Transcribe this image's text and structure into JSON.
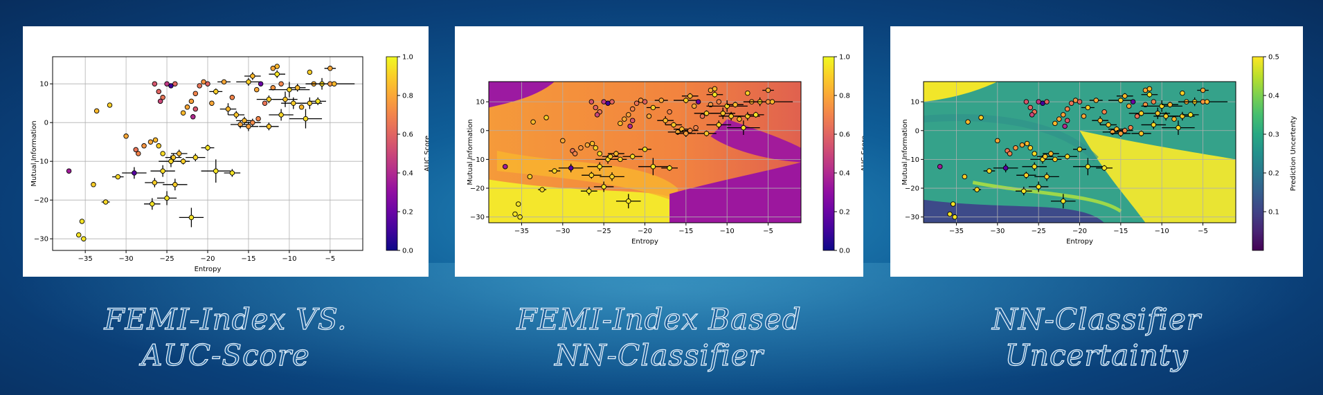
{
  "panels": [
    {
      "caption_line1": "FEMI-Index VS.",
      "caption_line2": "AUC-Score",
      "chart": {
        "type": "scatter",
        "xlabel": "Entropy",
        "ylabel": "Mutual Information",
        "colorbar_label": "AUC Score",
        "colormap": "plasma",
        "xlim": [
          -39,
          -1
        ],
        "ylim": [
          -33,
          17
        ],
        "xticks": [
          -35,
          -30,
          -25,
          -20,
          -15,
          -10,
          -5
        ],
        "yticks": [
          -30,
          -20,
          -10,
          0,
          10
        ],
        "cbar_range": [
          0,
          1
        ],
        "cbar_ticks": [
          "0.0",
          "0.2",
          "0.4",
          "0.6",
          "0.8",
          "1.0"
        ],
        "background": "none"
      }
    },
    {
      "caption_line1": "FEMI-Index Based",
      "caption_line2": "NN-Classifier",
      "chart": {
        "type": "scatter",
        "xlabel": "Entropy",
        "ylabel": "Mutual Information",
        "colorbar_label": "AUC Score",
        "colormap": "plasma",
        "xlim": [
          -39,
          -1
        ],
        "ylim": [
          -32,
          17
        ],
        "xticks": [
          -35,
          -30,
          -25,
          -20,
          -15,
          -10,
          -5
        ],
        "yticks": [
          -30,
          -20,
          -10,
          0,
          10
        ],
        "cbar_range": [
          0,
          1
        ],
        "cbar_ticks": [
          "0.0",
          "0.2",
          "0.4",
          "0.6",
          "0.8",
          "1.0"
        ],
        "background": "classifier"
      }
    },
    {
      "caption_line1": "NN-Classifier",
      "caption_line2": "Uncertainty",
      "chart": {
        "type": "scatter",
        "xlabel": "Entropy",
        "ylabel": "Mutual Information",
        "colorbar_label": "Prediction Uncertenty",
        "colormap": "viridis",
        "xlim": [
          -39,
          -1
        ],
        "ylim": [
          -32,
          17
        ],
        "xticks": [
          -35,
          -30,
          -25,
          -20,
          -15,
          -10,
          -5
        ],
        "yticks": [
          -30,
          -20,
          -10,
          0,
          10
        ],
        "cbar_range": [
          0,
          0.5
        ],
        "cbar_ticks": [
          "0.1",
          "0.2",
          "0.3",
          "0.4",
          "0.5"
        ],
        "background": "uncertainty"
      }
    }
  ],
  "chart_data": {
    "type": "scatter",
    "x_name": "Entropy",
    "y_name": "Mutual Information",
    "points": [
      {
        "x": -37.0,
        "y": -12.5,
        "auc": 0.35
      },
      {
        "x": -35.8,
        "y": -29.0,
        "auc": 0.95
      },
      {
        "x": -35.4,
        "y": -25.5,
        "auc": 0.95
      },
      {
        "x": -35.2,
        "y": -30.0,
        "auc": 0.95
      },
      {
        "x": -34.0,
        "y": -16.0,
        "auc": 0.9
      },
      {
        "x": -33.6,
        "y": 3.0,
        "auc": 0.85
      },
      {
        "x": -32.5,
        "y": -20.5,
        "auc": 0.92,
        "xe": 0.5,
        "ye": 0.5
      },
      {
        "x": -32.0,
        "y": 4.5,
        "auc": 0.9
      },
      {
        "x": -31.0,
        "y": -14.0,
        "auc": 0.92,
        "xe": 0.7
      },
      {
        "x": -30.0,
        "y": -3.5,
        "auc": 0.8
      },
      {
        "x": -29.0,
        "y": -13.0,
        "auc": 0.15,
        "xe": 1.5,
        "ye": 1.5
      },
      {
        "x": -28.8,
        "y": -7.0,
        "auc": 0.65
      },
      {
        "x": -28.5,
        "y": -8.0,
        "auc": 0.7
      },
      {
        "x": -27.8,
        "y": -6.0,
        "auc": 0.75
      },
      {
        "x": -27.0,
        "y": -5.0,
        "auc": 0.8
      },
      {
        "x": -26.4,
        "y": -4.5,
        "auc": 0.85
      },
      {
        "x": -26.0,
        "y": -6.0,
        "auc": 0.9
      },
      {
        "x": -25.5,
        "y": -8.0,
        "auc": 0.93
      },
      {
        "x": -26.5,
        "y": 10.0,
        "auc": 0.55
      },
      {
        "x": -26.0,
        "y": 8.0,
        "auc": 0.6
      },
      {
        "x": -25.5,
        "y": 6.5,
        "auc": 0.65
      },
      {
        "x": -25.0,
        "y": 10.0,
        "auc": 0.45
      },
      {
        "x": -24.5,
        "y": 9.5,
        "auc": 0.1
      },
      {
        "x": -24.0,
        "y": 10.0,
        "auc": 0.6
      },
      {
        "x": -25.8,
        "y": 5.5,
        "auc": 0.5
      },
      {
        "x": -26.8,
        "y": -21.0,
        "auc": 0.95,
        "xe": 1.0,
        "ye": 1.5
      },
      {
        "x": -26.5,
        "y": -15.5,
        "auc": 0.9,
        "xe": 1.2,
        "ye": 1.2
      },
      {
        "x": -25.5,
        "y": -12.5,
        "auc": 0.93,
        "xe": 1.5,
        "ye": 1.5
      },
      {
        "x": -25.0,
        "y": -19.5,
        "auc": 0.95,
        "xe": 1.2,
        "ye": 1.8
      },
      {
        "x": -24.5,
        "y": -10.0,
        "auc": 0.92,
        "xe": 1.5,
        "ye": 1.5
      },
      {
        "x": -24.0,
        "y": -16.0,
        "auc": 0.9,
        "xe": 1.5,
        "ye": 1.5
      },
      {
        "x": -24.2,
        "y": -9.0,
        "auc": 0.88,
        "xe": 1.0,
        "ye": 1.0
      },
      {
        "x": -23.5,
        "y": -8.0,
        "auc": 0.85,
        "xe": 1.0,
        "ye": 1.0
      },
      {
        "x": -23.0,
        "y": -10.0,
        "auc": 0.9,
        "xe": 0.8,
        "ye": 0.8
      },
      {
        "x": -23.0,
        "y": 2.5,
        "auc": 0.85
      },
      {
        "x": -22.5,
        "y": 4.0,
        "auc": 0.8
      },
      {
        "x": -22.0,
        "y": 5.5,
        "auc": 0.78
      },
      {
        "x": -21.5,
        "y": 7.5,
        "auc": 0.7
      },
      {
        "x": -21.5,
        "y": -9.0,
        "auc": 0.92,
        "xe": 1.2,
        "ye": 1.0
      },
      {
        "x": -22.0,
        "y": -24.5,
        "auc": 0.95,
        "xe": 1.5,
        "ye": 2.5
      },
      {
        "x": -21.0,
        "y": 9.5,
        "auc": 0.65
      },
      {
        "x": -20.5,
        "y": 10.5,
        "auc": 0.75
      },
      {
        "x": -20.0,
        "y": 10.0,
        "auc": 0.6
      },
      {
        "x": -21.5,
        "y": 3.5,
        "auc": 0.55
      },
      {
        "x": -21.8,
        "y": 1.5,
        "auc": 0.4
      },
      {
        "x": -20.0,
        "y": -6.5,
        "auc": 0.95,
        "xe": 0.8,
        "ye": 0.8
      },
      {
        "x": -19.5,
        "y": 5.0,
        "auc": 0.8
      },
      {
        "x": -19.0,
        "y": 8.0,
        "auc": 0.9,
        "xe": 0.8,
        "ye": 0.8
      },
      {
        "x": -19.0,
        "y": -12.5,
        "auc": 0.95,
        "xe": 1.8,
        "ye": 3.0
      },
      {
        "x": -18.0,
        "y": 10.5,
        "auc": 0.8,
        "xe": 0.8
      },
      {
        "x": -17.5,
        "y": 3.5,
        "auc": 0.85,
        "xe": 1.0,
        "ye": 1.5
      },
      {
        "x": -17.0,
        "y": -13.0,
        "auc": 0.95,
        "xe": 1.0,
        "ye": 1.0
      },
      {
        "x": -17.0,
        "y": 6.5,
        "auc": 0.7
      },
      {
        "x": -16.5,
        "y": 2.0,
        "auc": 0.88,
        "xe": 1.0,
        "ye": 1.0
      },
      {
        "x": -16.0,
        "y": -0.5,
        "auc": 0.8,
        "xe": 1.2,
        "ye": 1.0
      },
      {
        "x": -15.5,
        "y": 0.5,
        "auc": 0.85,
        "xe": 1.0,
        "ye": 1.0
      },
      {
        "x": -15.0,
        "y": -1.0,
        "auc": 0.78,
        "xe": 1.2,
        "ye": 1.2
      },
      {
        "x": -15.0,
        "y": 10.5,
        "auc": 0.9,
        "xe": 1.5,
        "ye": 1.0
      },
      {
        "x": -14.5,
        "y": 0.0,
        "auc": 0.72,
        "xe": 1.0,
        "ye": 1.0
      },
      {
        "x": -14.5,
        "y": 12.0,
        "auc": 0.85,
        "xe": 1.0,
        "ye": 1.0
      },
      {
        "x": -14.0,
        "y": 8.5,
        "auc": 0.8
      },
      {
        "x": -13.8,
        "y": 1.0,
        "auc": 0.7
      },
      {
        "x": -13.5,
        "y": 10.0,
        "auc": 0.2
      },
      {
        "x": -13.0,
        "y": 5.0,
        "auc": 0.65
      },
      {
        "x": -12.5,
        "y": 6.0,
        "auc": 0.9,
        "xe": 1.5,
        "ye": 1.0
      },
      {
        "x": -12.0,
        "y": 9.0,
        "auc": 0.75
      },
      {
        "x": -12.5,
        "y": -1.0,
        "auc": 0.88,
        "xe": 1.2,
        "ye": 1.0
      },
      {
        "x": -12.0,
        "y": 14.0,
        "auc": 0.8
      },
      {
        "x": -11.5,
        "y": 14.5,
        "auc": 0.85
      },
      {
        "x": -11.5,
        "y": 12.5,
        "auc": 0.95,
        "xe": 1.0,
        "ye": 1.0
      },
      {
        "x": -11.0,
        "y": 10.0,
        "auc": 0.7
      },
      {
        "x": -11.0,
        "y": 2.0,
        "auc": 0.92,
        "xe": 1.5,
        "ye": 1.5
      },
      {
        "x": -10.5,
        "y": 6.0,
        "auc": 0.88,
        "xe": 1.5,
        "ye": 2.0
      },
      {
        "x": -10.0,
        "y": 8.5,
        "auc": 0.92,
        "xe": 2.5,
        "ye": 2.0
      },
      {
        "x": -9.5,
        "y": 5.0,
        "auc": 0.9,
        "xe": 1.5,
        "ye": 1.5
      },
      {
        "x": -9.0,
        "y": 9.0,
        "auc": 0.85,
        "xe": 1.0,
        "ye": 1.0
      },
      {
        "x": -8.5,
        "y": 4.0,
        "auc": 0.85
      },
      {
        "x": -8.0,
        "y": 1.0,
        "auc": 0.93,
        "xe": 2.0,
        "ye": 2.5
      },
      {
        "x": -7.5,
        "y": 5.0,
        "auc": 0.9,
        "xe": 1.5,
        "ye": 1.5
      },
      {
        "x": -7.5,
        "y": 13.0,
        "auc": 0.9
      },
      {
        "x": -7.0,
        "y": 10.0,
        "auc": 0.82,
        "xe": 1.0
      },
      {
        "x": -6.5,
        "y": 5.5,
        "auc": 0.95,
        "xe": 1.0,
        "ye": 1.0
      },
      {
        "x": -6.0,
        "y": 10.0,
        "auc": 0.92,
        "xe": 1.5,
        "ye": 1.5
      },
      {
        "x": -5.0,
        "y": 10.0,
        "auc": 0.75,
        "xe": 3.0
      },
      {
        "x": -5.0,
        "y": 14.0,
        "auc": 0.8,
        "xe": 0.7
      },
      {
        "x": -4.5,
        "y": 10.0,
        "auc": 0.85
      }
    ]
  }
}
